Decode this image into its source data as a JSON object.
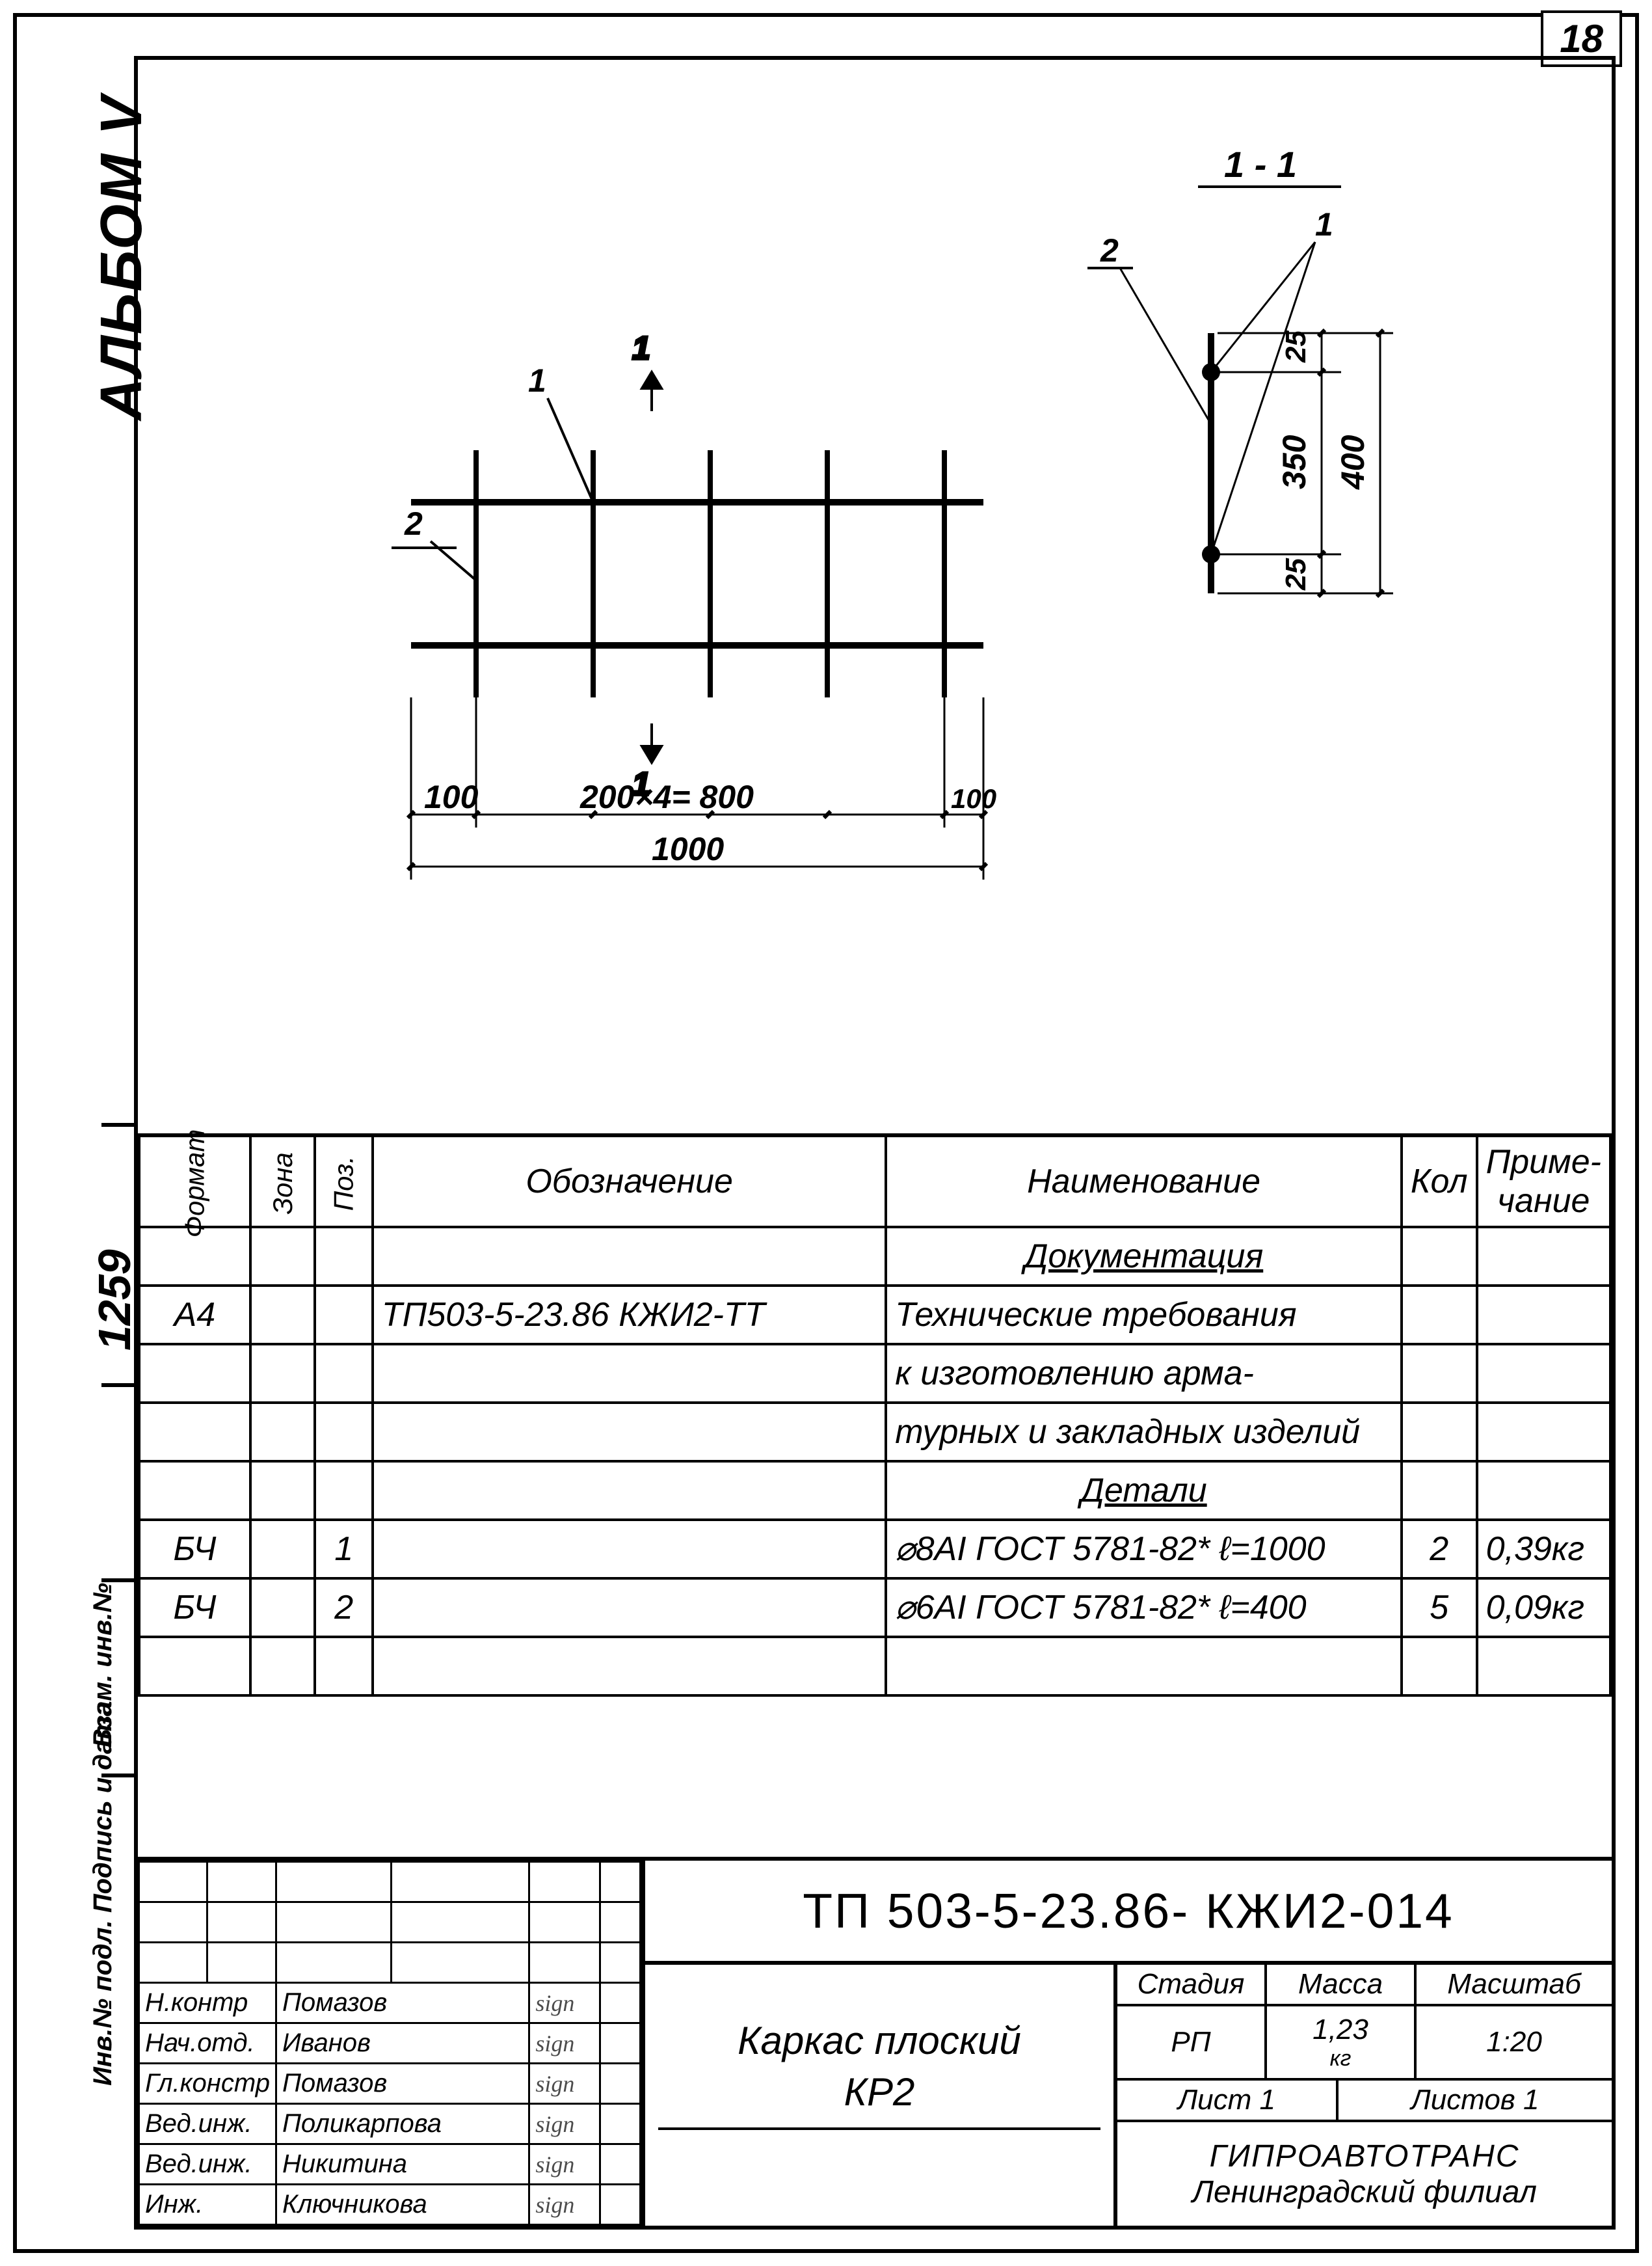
{
  "page_number": "18",
  "side_labels": {
    "album": "АЛЬБОМ V",
    "num": "1259",
    "side1": "Взам. инв.№",
    "side2": "Инв.№ подл.  Подпись и дата"
  },
  "drawing": {
    "main_view": {
      "label_1": "1",
      "label_2": "2",
      "section_mark": "1",
      "dim_100_l": "100",
      "dim_200x4": "200×4= 800",
      "dim_100_r": "100",
      "dim_1000": "1000"
    },
    "section_view": {
      "title": "1 - 1",
      "label_1": "1",
      "label_2": "2",
      "dim_25_top": "25",
      "dim_350": "350",
      "dim_25_bot": "25",
      "dim_400": "400"
    }
  },
  "spec": {
    "headers": {
      "format": "Формат",
      "zona": "Зона",
      "poz": "Поз.",
      "oboz": "Обозначение",
      "name": "Наименование",
      "kol": "Кол",
      "prim": "Приме-\nчание"
    },
    "rows": [
      {
        "format": "",
        "zona": "",
        "poz": "",
        "oboz": "",
        "name": "Документация",
        "name_class": "center uline",
        "kol": "",
        "prim": ""
      },
      {
        "format": "А4",
        "zona": "",
        "poz": "",
        "oboz": "ТП503-5-23.86    КЖИ2-ТТ",
        "name": "Технические требования",
        "kol": "",
        "prim": ""
      },
      {
        "format": "",
        "zona": "",
        "poz": "",
        "oboz": "",
        "name": "к изготовлению арма-",
        "kol": "",
        "prim": ""
      },
      {
        "format": "",
        "zona": "",
        "poz": "",
        "oboz": "",
        "name": "турных и закладных изделий",
        "kol": "",
        "prim": ""
      },
      {
        "format": "",
        "zona": "",
        "poz": "",
        "oboz": "",
        "name": "Детали",
        "name_class": "center uline",
        "kol": "",
        "prim": ""
      },
      {
        "format": "БЧ",
        "zona": "",
        "poz": "1",
        "oboz": "",
        "name": "⌀8АI ГОСТ 5781-82* ℓ=1000",
        "kol": "2",
        "prim": "0,39кг"
      },
      {
        "format": "БЧ",
        "zona": "",
        "poz": "2",
        "oboz": "",
        "name": "⌀6АI ГОСТ 5781-82* ℓ=400",
        "kol": "5",
        "prim": "0,09кг"
      }
    ]
  },
  "title_block": {
    "doc_number": "ТП 503-5-23.86- КЖИ2-014",
    "title_line1": "Каркас плоский",
    "title_line2": "КР2",
    "stage_hdr": "Стадия",
    "mass_hdr": "Масса",
    "scale_hdr": "Масштаб",
    "stage": "РП",
    "mass": "1,23",
    "mass_unit": "кг",
    "scale": "1:20",
    "sheet": "Лист 1",
    "sheets": "Листов 1",
    "org_line1": "ГИПРОАВТОТРАНС",
    "org_line2": "Ленинградский филиал",
    "signers": [
      {
        "role": "Н.контр",
        "name": "Помазов"
      },
      {
        "role": "Нач.отд.",
        "name": "Иванов"
      },
      {
        "role": "Гл.констр",
        "name": "Помазов"
      },
      {
        "role": "Вед.инж.",
        "name": "Поликарпова"
      },
      {
        "role": "Вед.инж.",
        "name": "Никитина"
      },
      {
        "role": "Инж.",
        "name": "Ключникова"
      }
    ]
  }
}
